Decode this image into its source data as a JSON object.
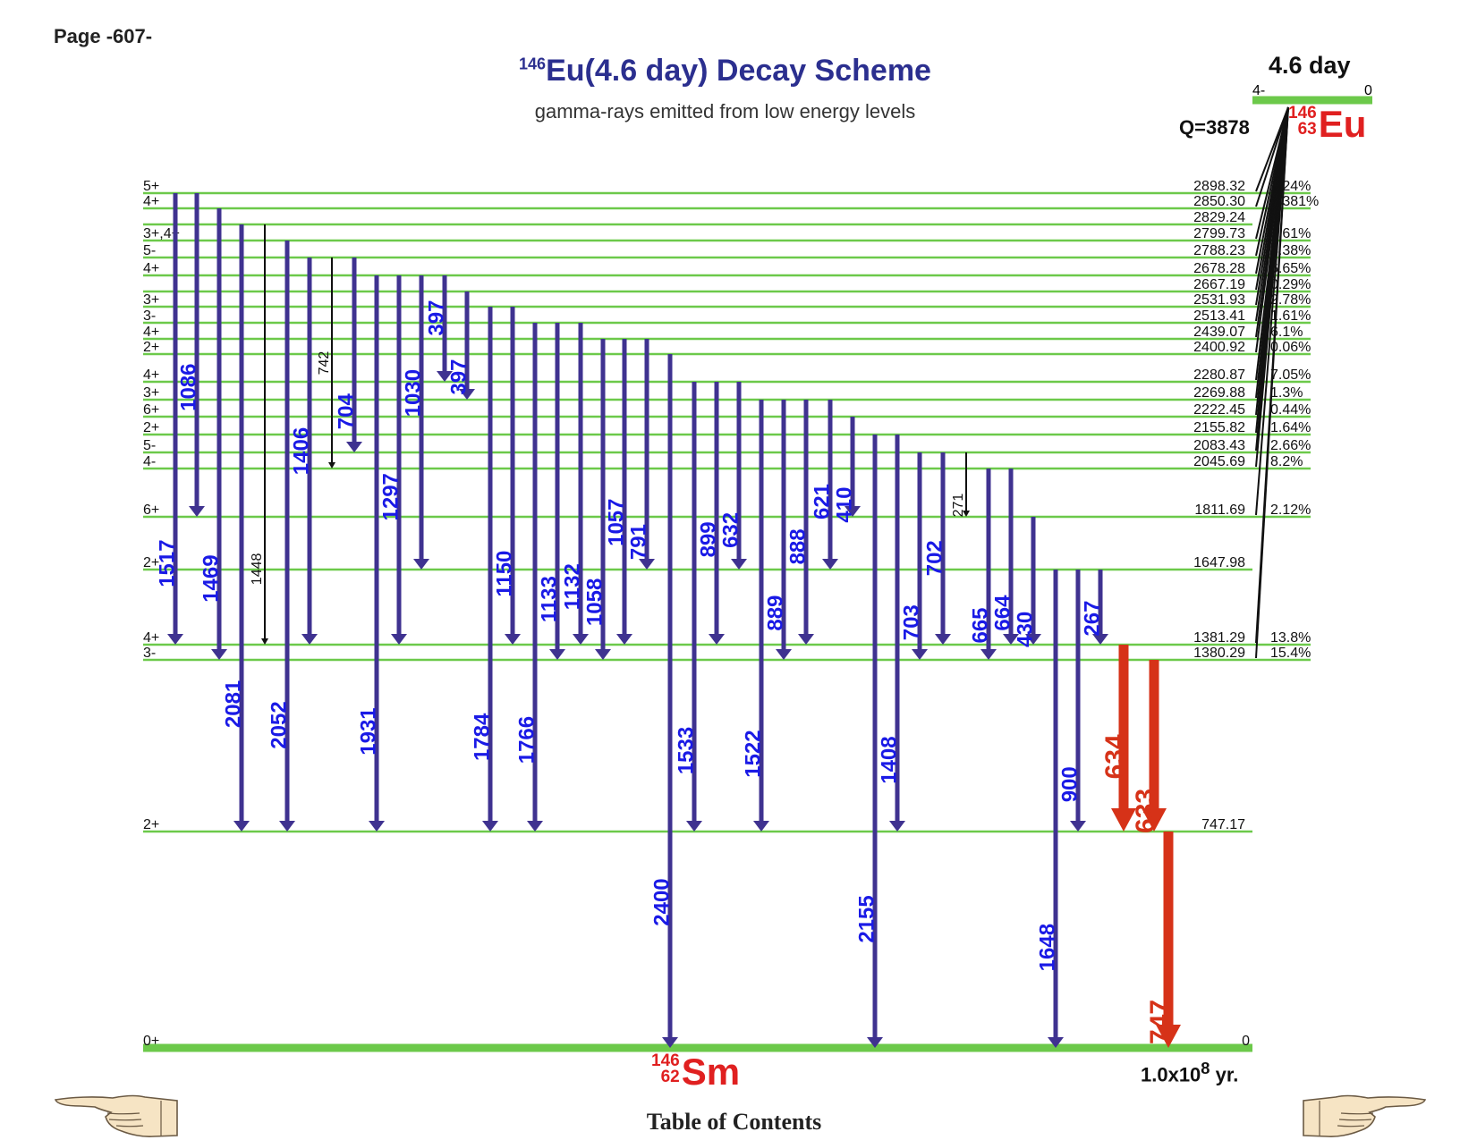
{
  "page_label": "Page -607-",
  "title": {
    "mass": "146",
    "text": "Eu(4.6 day) Decay Scheme"
  },
  "subtitle": "gamma-rays emitted from low energy levels",
  "parent": {
    "half_life": "4.6 day",
    "spin": "4-",
    "energy": "0",
    "mass": "146",
    "z": "63",
    "symbol": "Eu",
    "q_value": "Q=3878"
  },
  "daughter": {
    "mass": "146",
    "z": "62",
    "symbol": "Sm",
    "half_life_base": "1.0x10",
    "half_life_exp": "8",
    "half_life_unit": " yr."
  },
  "table_of_contents": "Table of Contents",
  "icons": {
    "left": "pointing-hand-left-icon",
    "right": "pointing-hand-right-icon"
  },
  "colors": {
    "level_line": "#6cc94a",
    "gamma_arrow": "#3f3290",
    "strong_gamma": "#d63218",
    "gamma_label": "#1a1ae6",
    "nucleus": "#e02020",
    "title": "#2b2f8f"
  },
  "levels": [
    {
      "energy": "2898.32",
      "spin": "5+",
      "feeding": "1.24%"
    },
    {
      "energy": "2850.30",
      "spin": "4+",
      "feeding": "0.381%"
    },
    {
      "energy": "2829.24",
      "spin": "",
      "feeding": ""
    },
    {
      "energy": "2799.73",
      "spin": "3+,4+",
      "feeding": "0.61%"
    },
    {
      "energy": "2788.23",
      "spin": "5-",
      "feeding": "4.38%"
    },
    {
      "energy": "2678.28",
      "spin": "4+",
      "feeding": "6.65%"
    },
    {
      "energy": "2667.19",
      "spin": "",
      "feeding": "0.29%"
    },
    {
      "energy": "2531.93",
      "spin": "3+",
      "feeding": "2.78%"
    },
    {
      "energy": "2513.41",
      "spin": "3-",
      "feeding": "1.61%"
    },
    {
      "energy": "2439.07",
      "spin": "4+",
      "feeding": "6.1%"
    },
    {
      "energy": "2400.92",
      "spin": "2+",
      "feeding": "0.06%"
    },
    {
      "energy": "2280.87",
      "spin": "4+",
      "feeding": "7.05%"
    },
    {
      "energy": "2269.88",
      "spin": "3+",
      "feeding": "1.3%"
    },
    {
      "energy": "2222.45",
      "spin": "6+",
      "feeding": "0.44%"
    },
    {
      "energy": "2155.82",
      "spin": "2+",
      "feeding": "1.64%"
    },
    {
      "energy": "2083.43",
      "spin": "5-",
      "feeding": "2.66%"
    },
    {
      "energy": "2045.69",
      "spin": "4-",
      "feeding": "8.2%"
    },
    {
      "energy": "1811.69",
      "spin": "6+",
      "feeding": "2.12%"
    },
    {
      "energy": "1647.98",
      "spin": "2+",
      "feeding": ""
    },
    {
      "energy": "1381.29",
      "spin": "4+",
      "feeding": "13.8%"
    },
    {
      "energy": "1380.29",
      "spin": "3-",
      "feeding": "15.4%"
    },
    {
      "energy": "747.17",
      "spin": "2+",
      "feeding": ""
    },
    {
      "energy": "0",
      "spin": "0+",
      "feeding": ""
    }
  ],
  "gammas": [
    {
      "label": "1517",
      "from": "2898.32",
      "to": "1381.29",
      "style": "normal"
    },
    {
      "label": "1086",
      "from": "2898.32",
      "to": "1811.69",
      "style": "normal"
    },
    {
      "label": "1469",
      "from": "2850.30",
      "to": "1380.29",
      "style": "normal"
    },
    {
      "label": "2081",
      "from": "2829.24",
      "to": "747.17",
      "style": "normal"
    },
    {
      "label": "1448",
      "from": "2829.24",
      "to": "1381.29",
      "style": "weak"
    },
    {
      "label": "2052",
      "from": "2799.73",
      "to": "747.17",
      "style": "normal"
    },
    {
      "label": "1406",
      "from": "2788.23",
      "to": "1381.29",
      "style": "normal"
    },
    {
      "label": "742",
      "from": "2788.23",
      "to": "2045.69",
      "style": "weak"
    },
    {
      "label": "704",
      "from": "2788.23",
      "to": "2083.43",
      "style": "normal"
    },
    {
      "label": "1931",
      "from": "2678.28",
      "to": "747.17",
      "style": "normal"
    },
    {
      "label": "1297",
      "from": "2678.28",
      "to": "1381.29",
      "style": "normal"
    },
    {
      "label": "1030",
      "from": "2678.28",
      "to": "1647.98",
      "style": "normal"
    },
    {
      "label": "397",
      "from": "2678.28",
      "to": "2280.87",
      "style": "normal"
    },
    {
      "label": "397",
      "from": "2667.19",
      "to": "2269.88",
      "style": "normal"
    },
    {
      "label": "1784",
      "from": "2531.93",
      "to": "747.17",
      "style": "normal"
    },
    {
      "label": "1150",
      "from": "2531.93",
      "to": "1381.29",
      "style": "normal"
    },
    {
      "label": "1766",
      "from": "2513.41",
      "to": "747.17",
      "style": "normal"
    },
    {
      "label": "1133",
      "from": "2513.41",
      "to": "1380.29",
      "style": "normal"
    },
    {
      "label": "1132",
      "from": "2513.41",
      "to": "1381.29",
      "style": "normal"
    },
    {
      "label": "1058",
      "from": "2439.07",
      "to": "1380.29",
      "style": "normal"
    },
    {
      "label": "1057",
      "from": "2439.07",
      "to": "1381.29",
      "style": "normal"
    },
    {
      "label": "791",
      "from": "2439.07",
      "to": "1647.98",
      "style": "normal"
    },
    {
      "label": "2400",
      "from": "2400.92",
      "to": "0",
      "style": "normal"
    },
    {
      "label": "1533",
      "from": "2280.87",
      "to": "747.17",
      "style": "normal"
    },
    {
      "label": "899",
      "from": "2280.87",
      "to": "1381.29",
      "style": "normal"
    },
    {
      "label": "632",
      "from": "2280.87",
      "to": "1647.98",
      "style": "normal"
    },
    {
      "label": "1522",
      "from": "2269.88",
      "to": "747.17",
      "style": "normal"
    },
    {
      "label": "889",
      "from": "2269.88",
      "to": "1380.29",
      "style": "normal"
    },
    {
      "label": "888",
      "from": "2269.88",
      "to": "1381.29",
      "style": "normal"
    },
    {
      "label": "621",
      "from": "2269.88",
      "to": "1647.98",
      "style": "normal"
    },
    {
      "label": "410",
      "from": "2222.45",
      "to": "1811.69",
      "style": "normal"
    },
    {
      "label": "2155",
      "from": "2155.82",
      "to": "0",
      "style": "normal"
    },
    {
      "label": "1408",
      "from": "2155.82",
      "to": "747.17",
      "style": "normal"
    },
    {
      "label": "703",
      "from": "2083.43",
      "to": "1380.29",
      "style": "normal"
    },
    {
      "label": "702",
      "from": "2083.43",
      "to": "1381.29",
      "style": "normal"
    },
    {
      "label": "271",
      "from": "2083.43",
      "to": "1811.69",
      "style": "weak"
    },
    {
      "label": "665",
      "from": "2045.69",
      "to": "1380.29",
      "style": "normal"
    },
    {
      "label": "664",
      "from": "2045.69",
      "to": "1381.29",
      "style": "normal"
    },
    {
      "label": "430",
      "from": "1811.69",
      "to": "1381.29",
      "style": "normal"
    },
    {
      "label": "1648",
      "from": "1647.98",
      "to": "0",
      "style": "normal"
    },
    {
      "label": "900",
      "from": "1647.98",
      "to": "747.17",
      "style": "normal"
    },
    {
      "label": "267",
      "from": "1647.98",
      "to": "1381.29",
      "style": "normal"
    },
    {
      "label": "634",
      "from": "1381.29",
      "to": "747.17",
      "style": "strong"
    },
    {
      "label": "633",
      "from": "1380.29",
      "to": "747.17",
      "style": "strong"
    },
    {
      "label": "747",
      "from": "747.17",
      "to": "0",
      "style": "strong"
    }
  ]
}
